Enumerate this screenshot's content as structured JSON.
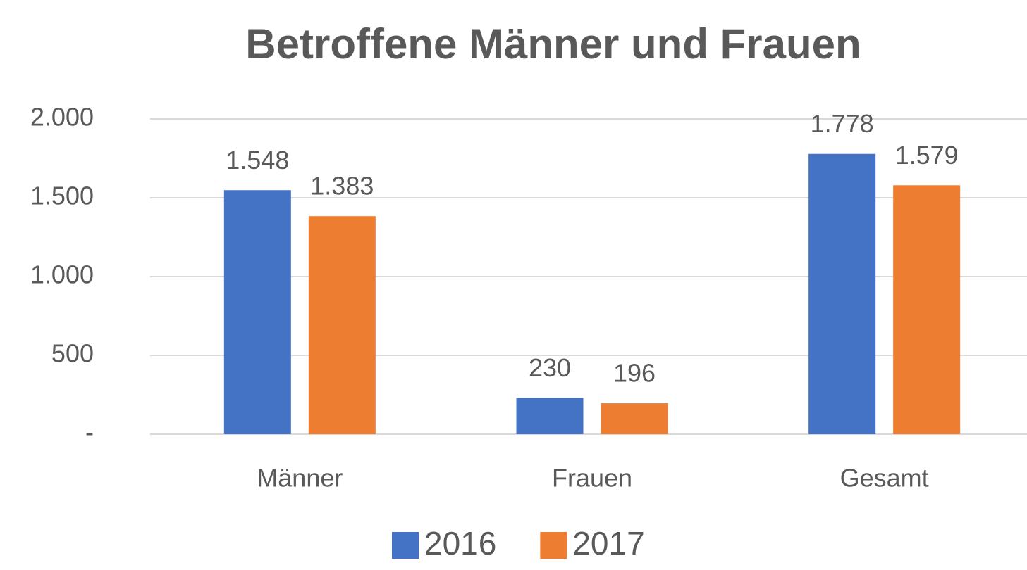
{
  "chart_data": {
    "type": "bar",
    "title": "Betroffene Männer und Frauen",
    "categories": [
      "Männer",
      "Frauen",
      "Gesamt"
    ],
    "series": [
      {
        "name": "2016",
        "color": "#4472c4",
        "values": [
          1548,
          230,
          1778
        ],
        "value_labels": [
          "1.548",
          "230",
          "1.778"
        ]
      },
      {
        "name": "2017",
        "color": "#ed7d31",
        "values": [
          1383,
          196,
          1579
        ],
        "value_labels": [
          "1.383",
          "196",
          "1.579"
        ]
      }
    ],
    "ylim": [
      0,
      2000
    ],
    "yticks": [
      {
        "value": 0,
        "label": "-"
      },
      500,
      {
        "value": 1000,
        "label": "1.000"
      },
      {
        "value": 1500,
        "label": "1.500"
      },
      {
        "value": 2000,
        "label": "2.000"
      }
    ],
    "grid": true,
    "legend": "bottom"
  }
}
